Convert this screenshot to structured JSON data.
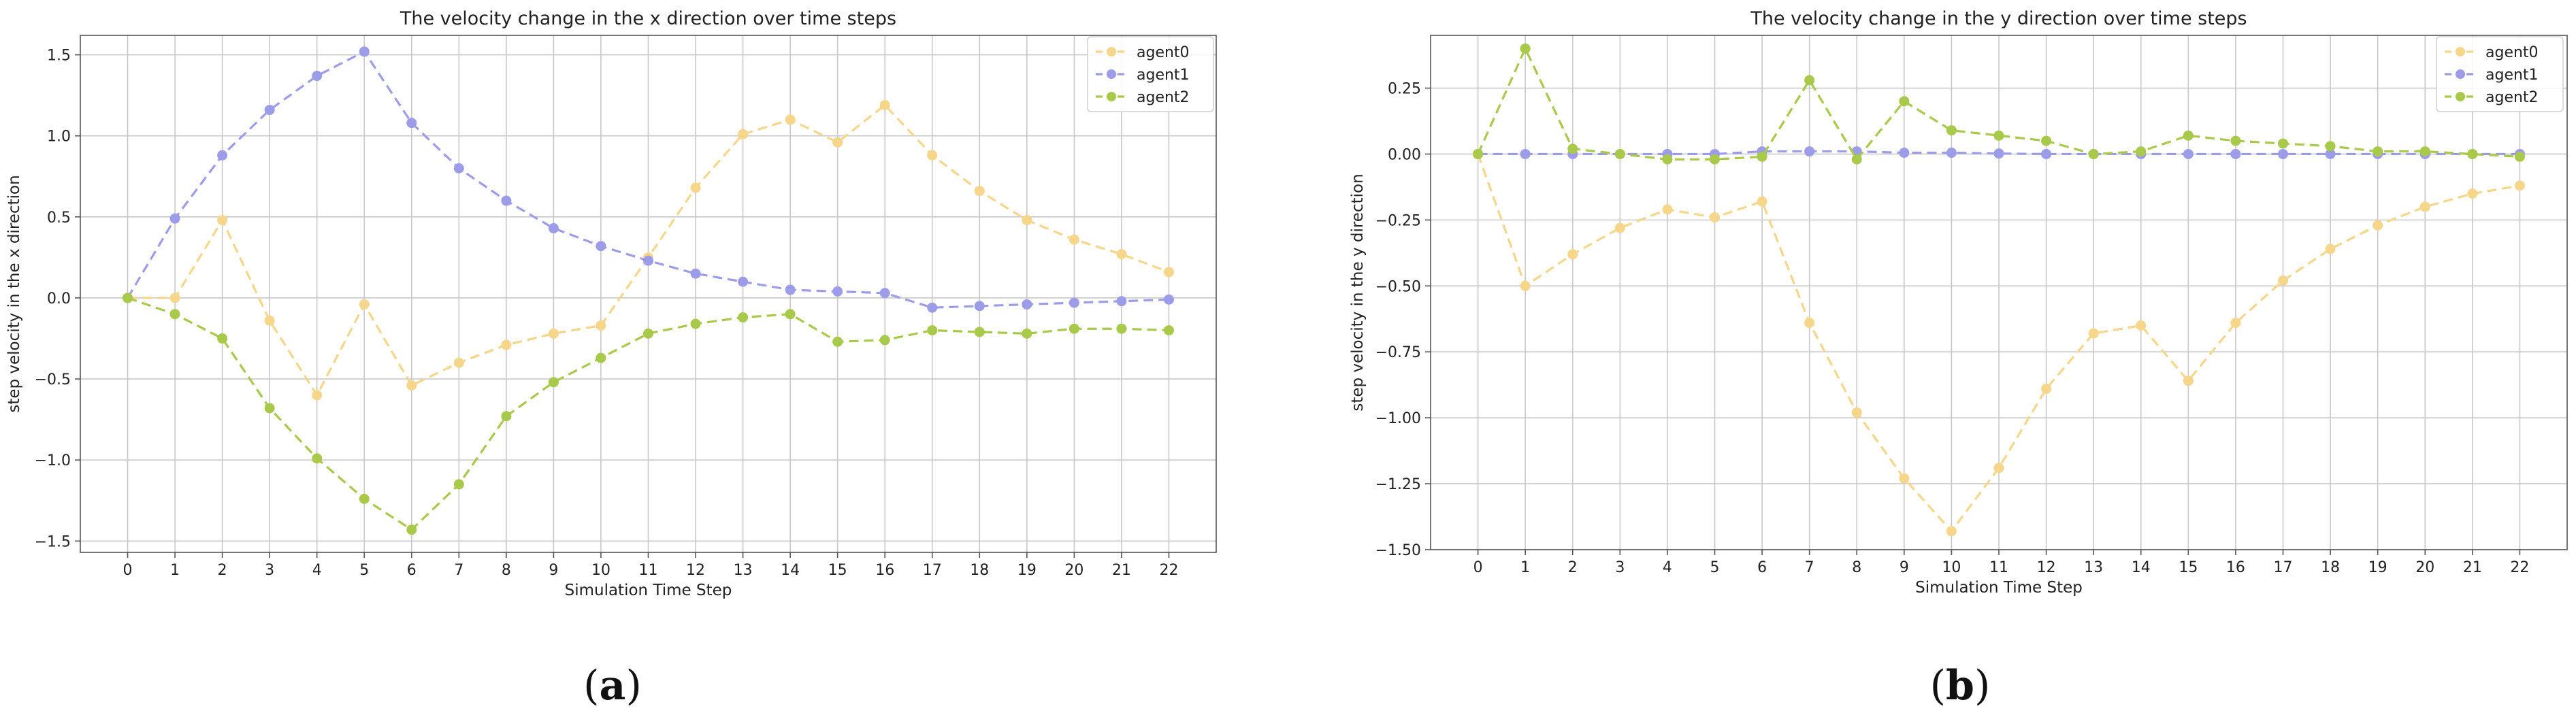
{
  "chart_data": [
    {
      "type": "line",
      "title": "The velocity change in the x direction over time steps",
      "xlabel": "Simulation Time Step",
      "ylabel": "step velocity in the x direction",
      "x": [
        0,
        1,
        2,
        3,
        4,
        5,
        6,
        7,
        8,
        9,
        10,
        11,
        12,
        13,
        14,
        15,
        16,
        17,
        18,
        19,
        20,
        21,
        22
      ],
      "xlim": [
        -1,
        23
      ],
      "ylim": [
        -1.57,
        1.62
      ],
      "yticks": [
        -1.5,
        -1.0,
        -0.5,
        0.0,
        0.5,
        1.0,
        1.5
      ],
      "ytick_labels": [
        "−1.5",
        "−1.0",
        "−0.5",
        "0.0",
        "0.5",
        "1.0",
        "1.5"
      ],
      "grid": true,
      "legend_position": "top-right",
      "series": [
        {
          "name": "agent0",
          "color": "#f5d68a",
          "values": [
            0,
            0,
            0.48,
            -0.14,
            -0.6,
            -0.04,
            -0.54,
            -0.4,
            -0.29,
            -0.22,
            -0.17,
            0.25,
            0.68,
            1.01,
            1.1,
            0.96,
            1.19,
            0.88,
            0.66,
            0.48,
            0.36,
            0.27,
            0.16
          ]
        },
        {
          "name": "agent1",
          "color": "#9c9ce8",
          "values": [
            0,
            0.49,
            0.88,
            1.16,
            1.37,
            1.52,
            1.08,
            0.8,
            0.6,
            0.43,
            0.32,
            0.23,
            0.15,
            0.1,
            0.05,
            0.04,
            0.03,
            -0.06,
            -0.05,
            -0.04,
            -0.03,
            -0.02,
            -0.01
          ]
        },
        {
          "name": "agent2",
          "color": "#a8c94a",
          "values": [
            0,
            -0.1,
            -0.25,
            -0.68,
            -0.99,
            -1.24,
            -1.43,
            -1.15,
            -0.73,
            -0.52,
            -0.37,
            -0.22,
            -0.16,
            -0.12,
            -0.1,
            -0.27,
            -0.26,
            -0.2,
            -0.21,
            -0.22,
            -0.19,
            -0.19,
            -0.2
          ]
        }
      ]
    },
    {
      "type": "line",
      "title": "The velocity change in the y direction over time steps",
      "xlabel": "Simulation Time Step",
      "ylabel": "step velocity in the y direction",
      "x": [
        0,
        1,
        2,
        3,
        4,
        5,
        6,
        7,
        8,
        9,
        10,
        11,
        12,
        13,
        14,
        15,
        16,
        17,
        18,
        19,
        20,
        21,
        22
      ],
      "xlim": [
        -1,
        23
      ],
      "ylim": [
        -1.5,
        0.45
      ],
      "yticks": [
        -1.5,
        -1.25,
        -1.0,
        -0.75,
        -0.5,
        -0.25,
        0.0,
        0.25
      ],
      "ytick_labels": [
        "−1.50",
        "−1.25",
        "−1.00",
        "−0.75",
        "−0.50",
        "−0.25",
        "0.00",
        "0.25"
      ],
      "grid": true,
      "legend_position": "top-right",
      "series": [
        {
          "name": "agent0",
          "color": "#f5d68a",
          "values": [
            0,
            -0.5,
            -0.38,
            -0.28,
            -0.21,
            -0.24,
            -0.18,
            -0.64,
            -0.98,
            -1.23,
            -1.43,
            -1.19,
            -0.89,
            -0.68,
            -0.65,
            -0.86,
            -0.64,
            -0.48,
            -0.36,
            -0.27,
            -0.2,
            -0.15,
            -0.12
          ]
        },
        {
          "name": "agent1",
          "color": "#9c9ce8",
          "values": [
            0,
            0,
            0,
            0,
            0,
            0,
            0.01,
            0.01,
            0.01,
            0.005,
            0.005,
            0.002,
            0,
            0,
            0,
            0,
            0,
            0,
            0,
            0,
            0,
            0,
            0
          ]
        },
        {
          "name": "agent2",
          "color": "#a8c94a",
          "values": [
            0,
            0.4,
            0.02,
            0.0,
            -0.02,
            -0.02,
            -0.01,
            0.28,
            -0.02,
            0.2,
            0.09,
            0.07,
            0.05,
            0.0,
            0.01,
            0.07,
            0.05,
            0.04,
            0.03,
            0.01,
            0.01,
            0.0,
            -0.01
          ]
        }
      ]
    }
  ],
  "panel_labels": [
    "(a)",
    "(b)"
  ]
}
